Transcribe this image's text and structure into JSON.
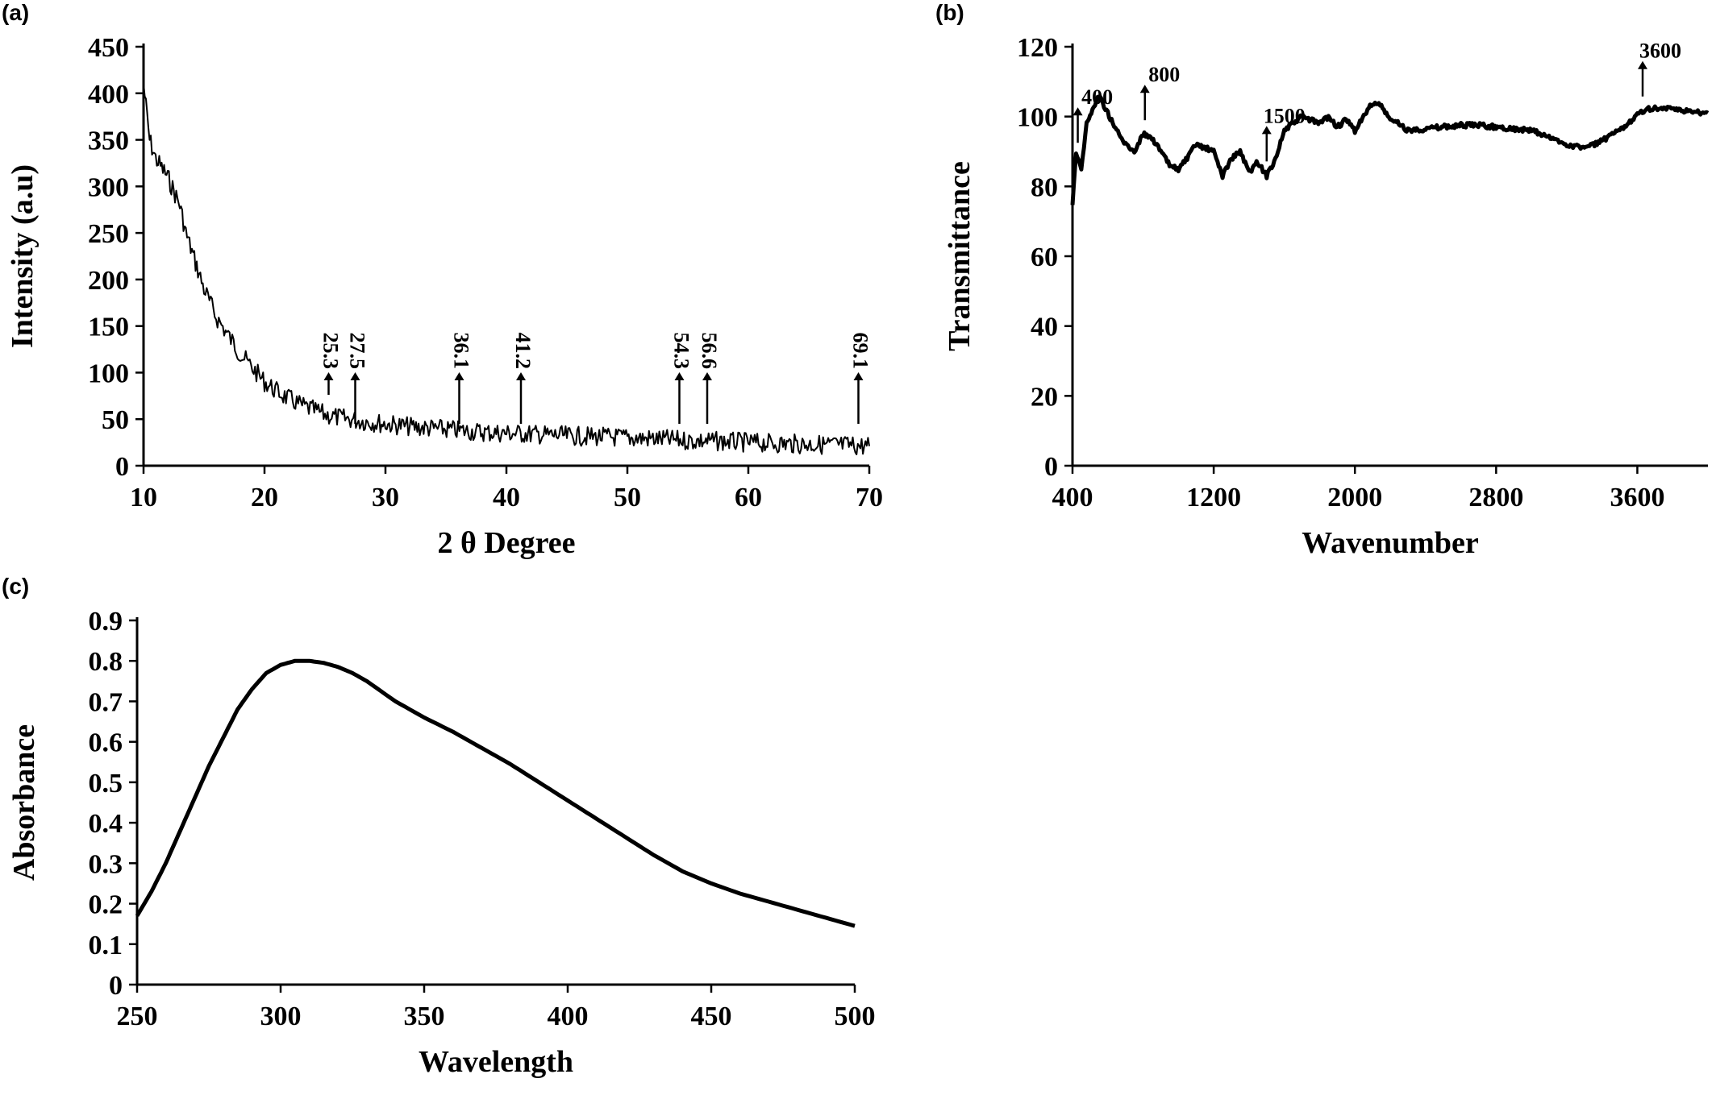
{
  "panels": {
    "a": "(a)",
    "b": "(b)",
    "c": "(c)"
  },
  "chart_data": [
    {
      "type": "line",
      "panel": "(a)",
      "xlabel": "2 θ Degree",
      "ylabel": "Intensity (a.u)",
      "xlim": [
        10,
        70
      ],
      "ylim": [
        0,
        450
      ],
      "xticks": [
        10,
        20,
        30,
        40,
        50,
        60,
        70
      ],
      "yticks": [
        0,
        50,
        100,
        150,
        200,
        250,
        300,
        350,
        400,
        450
      ],
      "grid": false,
      "series": [
        {
          "x": [
            10,
            10.5,
            11,
            11.5,
            12,
            12.5,
            13,
            13.5,
            14,
            14.5,
            15,
            16,
            17,
            18,
            19,
            20,
            21,
            22,
            23,
            24,
            25,
            26,
            27,
            28,
            30,
            32,
            34,
            36,
            38,
            40,
            42,
            45,
            48,
            50,
            52,
            55,
            58,
            60,
            62,
            65,
            68,
            70
          ],
          "y": [
            410,
            350,
            330,
            320,
            310,
            295,
            280,
            250,
            230,
            210,
            190,
            160,
            140,
            120,
            105,
            90,
            80,
            72,
            65,
            60,
            55,
            52,
            50,
            48,
            45,
            42,
            40,
            38,
            36,
            35,
            34,
            32,
            31,
            30,
            29,
            27,
            26,
            25,
            24,
            23,
            22,
            21
          ]
        }
      ],
      "annotations": [
        {
          "label": "25.3",
          "x": 25.3
        },
        {
          "label": "27.5",
          "x": 27.5
        },
        {
          "label": "36.1",
          "x": 36.1
        },
        {
          "label": "41.2",
          "x": 41.2
        },
        {
          "label": "54.3",
          "x": 54.3
        },
        {
          "label": "56.6",
          "x": 56.6
        },
        {
          "label": "69.1",
          "x": 69.1
        }
      ]
    },
    {
      "type": "line",
      "panel": "(b)",
      "xlabel": "Wavenumber",
      "ylabel": "Transmittance",
      "xlim": [
        400,
        4000
      ],
      "ylim": [
        0,
        120
      ],
      "xticks": [
        400,
        1200,
        2000,
        2800,
        3600
      ],
      "yticks": [
        0,
        20,
        40,
        60,
        80,
        100,
        120
      ],
      "grid": false,
      "series": [
        {
          "x": [
            400,
            420,
            450,
            480,
            500,
            520,
            550,
            600,
            650,
            700,
            750,
            800,
            850,
            900,
            950,
            1000,
            1050,
            1100,
            1150,
            1200,
            1250,
            1300,
            1350,
            1400,
            1450,
            1500,
            1550,
            1600,
            1650,
            1700,
            1750,
            1800,
            1850,
            1900,
            1950,
            2000,
            2050,
            2100,
            2150,
            2200,
            2250,
            2300,
            2400,
            2500,
            2600,
            2700,
            2800,
            2900,
            3000,
            3100,
            3200,
            3300,
            3400,
            3500,
            3550,
            3600,
            3650,
            3700,
            3800,
            3900,
            4000
          ],
          "y": [
            75,
            90,
            85,
            98,
            100,
            103,
            106,
            101,
            96,
            92,
            90,
            95,
            94,
            90,
            86,
            85,
            88,
            92,
            91,
            90,
            83,
            88,
            90,
            84,
            87,
            83,
            88,
            96,
            98,
            100,
            99,
            98,
            100,
            97,
            99,
            96,
            100,
            104,
            103,
            99,
            98,
            96,
            96.5,
            97,
            97.5,
            97.5,
            97,
            96.5,
            96,
            94,
            92,
            91,
            93,
            96,
            98,
            101,
            102,
            102.5,
            102,
            101.5,
            101
          ]
        }
      ],
      "annotations": [
        {
          "label": "400",
          "x": 430
        },
        {
          "label": "800",
          "x": 810
        },
        {
          "label": "1500",
          "x": 1500
        },
        {
          "label": "3600",
          "x": 3630
        }
      ]
    },
    {
      "type": "line",
      "panel": "(c)",
      "xlabel": "Wavelength",
      "ylabel": "Absorbance",
      "xlim": [
        250,
        500
      ],
      "ylim": [
        0,
        0.9
      ],
      "xticks": [
        250,
        300,
        350,
        400,
        450,
        500
      ],
      "yticks": [
        0,
        0.1,
        0.2,
        0.3,
        0.4,
        0.5,
        0.6,
        0.7,
        0.8,
        0.9
      ],
      "grid": false,
      "series": [
        {
          "x": [
            250,
            255,
            260,
            265,
            270,
            275,
            280,
            285,
            290,
            295,
            300,
            305,
            310,
            315,
            320,
            325,
            330,
            340,
            350,
            360,
            370,
            380,
            390,
            400,
            410,
            420,
            430,
            440,
            450,
            460,
            470,
            480,
            490,
            500
          ],
          "y": [
            0.17,
            0.23,
            0.3,
            0.38,
            0.46,
            0.54,
            0.61,
            0.68,
            0.73,
            0.77,
            0.79,
            0.8,
            0.8,
            0.795,
            0.785,
            0.77,
            0.75,
            0.7,
            0.66,
            0.625,
            0.585,
            0.545,
            0.5,
            0.455,
            0.41,
            0.365,
            0.32,
            0.28,
            0.25,
            0.225,
            0.205,
            0.185,
            0.165,
            0.145
          ]
        }
      ]
    }
  ]
}
